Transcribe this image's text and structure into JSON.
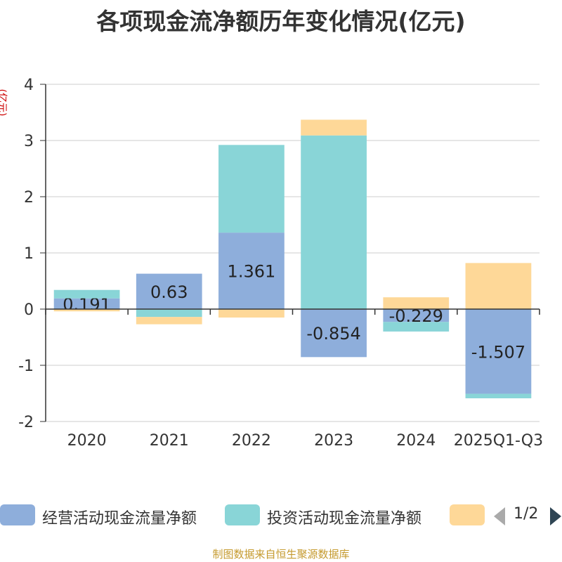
{
  "chart_data": {
    "type": "bar",
    "stacked": true,
    "title": "各项现金流净额历年变化情况(亿元)",
    "ylabel": "(亿元)",
    "ylim": [
      -2,
      4
    ],
    "yticks": [
      -2,
      -1,
      0,
      1,
      2,
      3,
      4
    ],
    "grid": true,
    "legend_position": "bottom",
    "categories": [
      "2020",
      "2021",
      "2022",
      "2023",
      "2024",
      "2025Q1-Q3"
    ],
    "series": [
      {
        "name": "经营活动现金流量净额",
        "color": "#8eaedb",
        "values": [
          0.191,
          0.63,
          1.361,
          -0.854,
          -0.229,
          -1.507
        ],
        "show_labels": true
      },
      {
        "name": "投资活动现金流量净额",
        "color": "#89d5d7",
        "values": [
          0.15,
          -0.14,
          1.56,
          3.09,
          -0.17,
          -0.08
        ],
        "show_labels": false
      },
      {
        "name": "",
        "color": "#fed898",
        "values": [
          -0.04,
          -0.13,
          -0.15,
          0.28,
          0.21,
          0.82
        ],
        "show_labels": false
      }
    ]
  },
  "legend": {
    "items": [
      {
        "label": "经营活动现金流量净额",
        "color": "#8eaedb"
      },
      {
        "label": "投资活动现金流量净额",
        "color": "#89d5d7"
      },
      {
        "label": "",
        "color": "#fed898"
      }
    ],
    "page_indicator": "1/2",
    "prev_icon": "triangle-left-icon",
    "next_icon": "triangle-right-icon"
  },
  "footer": {
    "source": "制图数据来自恒生聚源数据库"
  }
}
